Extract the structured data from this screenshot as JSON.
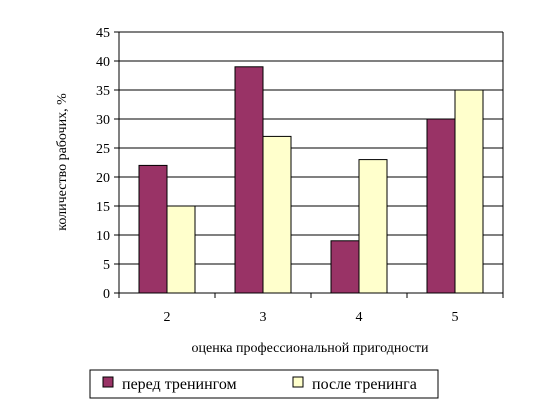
{
  "chart_data": {
    "type": "bar",
    "categories": [
      "2",
      "3",
      "4",
      "5"
    ],
    "series": [
      {
        "name": "перед тренингом",
        "values": [
          22,
          39,
          9,
          30
        ],
        "color": "#993366"
      },
      {
        "name": "после тренинга",
        "values": [
          15,
          27,
          23,
          35
        ],
        "color": "#FFFFCC"
      }
    ],
    "xlabel": "оценка профессиональной пригодности",
    "ylabel": "количество рабочих, %",
    "ylim": [
      0,
      45
    ],
    "yticks": [
      0,
      5,
      10,
      15,
      20,
      25,
      30,
      35,
      40,
      45
    ],
    "grid": true,
    "legend_position": "bottom"
  }
}
